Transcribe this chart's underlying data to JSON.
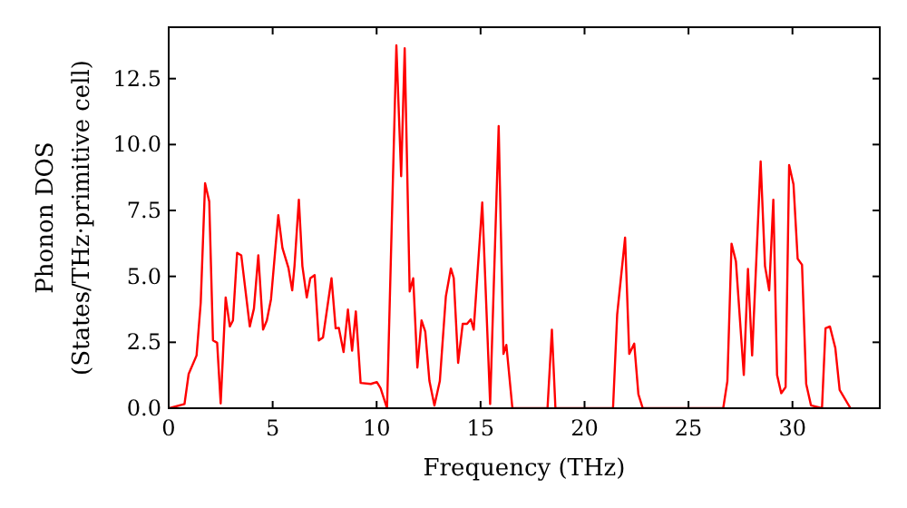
{
  "chart_data": {
    "type": "line",
    "xlabel": "Frequency (THz)",
    "ylabel": "Phonon DOS\n(States/THz·primitive cell)",
    "xlim": [
      0,
      34.2
    ],
    "ylim": [
      0,
      14.45
    ],
    "xticks": [
      0,
      5,
      10,
      15,
      20,
      25,
      30
    ],
    "yticks": [
      {
        "value": 0,
        "label": "0.0"
      },
      {
        "value": 2.5,
        "label": "2.5"
      },
      {
        "value": 5,
        "label": "5.0"
      },
      {
        "value": 7.5,
        "label": "7.5"
      },
      {
        "value": 10,
        "label": "10.0"
      },
      {
        "value": 12.5,
        "label": "12.5"
      }
    ],
    "grid": false,
    "line_style": "solid",
    "marker": "none",
    "series": [
      {
        "color": "#ff0000",
        "x": [
          0.03,
          0.76,
          0.96,
          1.34,
          1.54,
          1.75,
          1.95,
          2.13,
          2.33,
          2.5,
          2.74,
          2.94,
          3.09,
          3.29,
          3.49,
          3.9,
          4.1,
          4.31,
          4.54,
          4.72,
          4.92,
          5.27,
          5.47,
          5.76,
          5.94,
          6.05,
          6.26,
          6.43,
          6.64,
          6.81,
          7.02,
          7.22,
          7.42,
          7.83,
          8.03,
          8.18,
          8.41,
          8.62,
          8.82,
          9.0,
          9.23,
          9.72,
          10.01,
          10.19,
          10.5,
          10.95,
          11.18,
          11.35,
          11.59,
          11.76,
          11.96,
          12.16,
          12.34,
          12.54,
          12.78,
          13.04,
          13.33,
          13.57,
          13.71,
          13.92,
          14.14,
          14.35,
          14.53,
          14.67,
          15.08,
          15.46,
          15.87,
          16.1,
          16.24,
          16.53,
          18.22,
          18.43,
          18.6,
          21.37,
          21.57,
          21.95,
          22.15,
          22.39,
          22.59,
          22.8,
          26.67,
          26.87,
          27.07,
          27.28,
          27.66,
          27.86,
          28.06,
          28.47,
          28.68,
          28.88,
          29.08,
          29.26,
          29.46,
          29.67,
          29.84,
          30.05,
          30.25,
          30.46,
          30.66,
          30.89,
          31.42,
          31.59,
          31.8,
          32.06,
          32.27,
          32.79
        ],
        "values": [
          0,
          0.16,
          1.3,
          2.0,
          4.0,
          8.53,
          7.84,
          2.57,
          2.48,
          0.18,
          4.2,
          3.1,
          3.33,
          5.89,
          5.8,
          3.1,
          3.78,
          5.8,
          2.98,
          3.33,
          4.13,
          7.32,
          6.08,
          5.32,
          4.47,
          5.39,
          7.91,
          5.39,
          4.2,
          4.93,
          5.05,
          2.57,
          2.68,
          4.93,
          3.03,
          3.05,
          2.13,
          3.74,
          2.18,
          3.67,
          0.96,
          0.92,
          0.99,
          0.76,
          0,
          13.76,
          8.8,
          13.65,
          4.43,
          4.93,
          1.54,
          3.33,
          2.9,
          1.03,
          0.1,
          1.03,
          4.24,
          5.3,
          4.93,
          1.72,
          3.2,
          3.2,
          3.37,
          2.98,
          7.8,
          0.16,
          10.7,
          2.06,
          2.4,
          0,
          0,
          2.98,
          0,
          0,
          3.56,
          6.47,
          2.06,
          2.45,
          0.53,
          0,
          0,
          1.03,
          6.24,
          5.57,
          1.26,
          5.28,
          2.0,
          9.36,
          5.39,
          4.47,
          7.91,
          1.26,
          0.57,
          0.8,
          9.22,
          8.49,
          5.67,
          5.44,
          0.92,
          0.11,
          0,
          3.03,
          3.1,
          2.29,
          0.69,
          0
        ]
      }
    ]
  }
}
